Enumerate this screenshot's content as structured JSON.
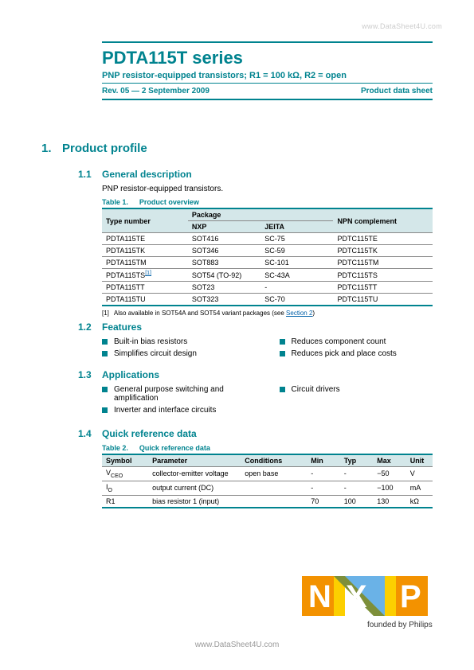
{
  "watermark_top": "www.DataSheet4U.com",
  "watermark_bottom": "www.DataSheet4U.com",
  "header": {
    "title": "PDTA115T series",
    "subtitle": "PNP resistor-equipped transistors; R1 = 100 kΩ, R2 = open",
    "rev": "Rev. 05 — 2 September 2009",
    "doc_type": "Product data sheet"
  },
  "section1": {
    "num": "1.",
    "title": "Product profile"
  },
  "s11": {
    "num": "1.1",
    "title": "General description",
    "text": "PNP resistor-equipped transistors.",
    "table_label_num": "Table 1.",
    "table_label_title": "Product overview",
    "headers": {
      "type": "Type number",
      "package": "Package",
      "nxp": "NXP",
      "jeita": "JEITA",
      "npn": "NPN complement"
    },
    "rows": [
      {
        "type": "PDTA115TE",
        "nxp": "SOT416",
        "jeita": "SC-75",
        "npn": "PDTC115TE"
      },
      {
        "type": "PDTA115TK",
        "nxp": "SOT346",
        "jeita": "SC-59",
        "npn": "PDTC115TK"
      },
      {
        "type": "PDTA115TM",
        "nxp": "SOT883",
        "jeita": "SC-101",
        "npn": "PDTC115TM"
      },
      {
        "type": "PDTA115TS",
        "nxp": "SOT54 (TO-92)",
        "jeita": "SC-43A",
        "npn": "PDTC115TS",
        "sup": "[1]"
      },
      {
        "type": "PDTA115TT",
        "nxp": "SOT23",
        "jeita": "-",
        "npn": "PDTC115TT"
      },
      {
        "type": "PDTA115TU",
        "nxp": "SOT323",
        "jeita": "SC-70",
        "npn": "PDTC115TU"
      }
    ],
    "footnote_num": "[1]",
    "footnote_text": "Also available in SOT54A and SOT54 variant packages (see ",
    "footnote_link": "Section 2",
    "footnote_close": ")"
  },
  "s12": {
    "num": "1.2",
    "title": "Features",
    "left": [
      "Built-in bias resistors",
      "Simplifies circuit design"
    ],
    "right": [
      "Reduces component count",
      "Reduces pick and place costs"
    ]
  },
  "s13": {
    "num": "1.3",
    "title": "Applications",
    "left": [
      "General purpose switching and amplification",
      "Inverter and interface circuits"
    ],
    "right": [
      "Circuit drivers"
    ]
  },
  "s14": {
    "num": "1.4",
    "title": "Quick reference data",
    "table_label_num": "Table 2.",
    "table_label_title": "Quick reference data",
    "headers": {
      "symbol": "Symbol",
      "param": "Parameter",
      "cond": "Conditions",
      "min": "Min",
      "typ": "Typ",
      "max": "Max",
      "unit": "Unit"
    },
    "rows": [
      {
        "symbol": "V",
        "sub": "CEO",
        "param": "collector-emitter voltage",
        "cond": "open base",
        "min": "-",
        "typ": "-",
        "max": "−50",
        "unit": "V"
      },
      {
        "symbol": "I",
        "sub": "O",
        "param": "output current (DC)",
        "cond": "",
        "min": "-",
        "typ": "-",
        "max": "−100",
        "unit": "mA"
      },
      {
        "symbol": "R1",
        "sub": "",
        "param": "bias resistor 1 (input)",
        "cond": "",
        "min": "70",
        "typ": "100",
        "max": "130",
        "unit": "kΩ"
      }
    ]
  },
  "logo": {
    "text": "NXP",
    "tagline": "founded by Philips",
    "colors": {
      "orange": "#f39200",
      "yellow": "#fccf00",
      "teal": "#00838f",
      "blue": "#6ab2e7",
      "green": "#9ccb3b"
    }
  }
}
